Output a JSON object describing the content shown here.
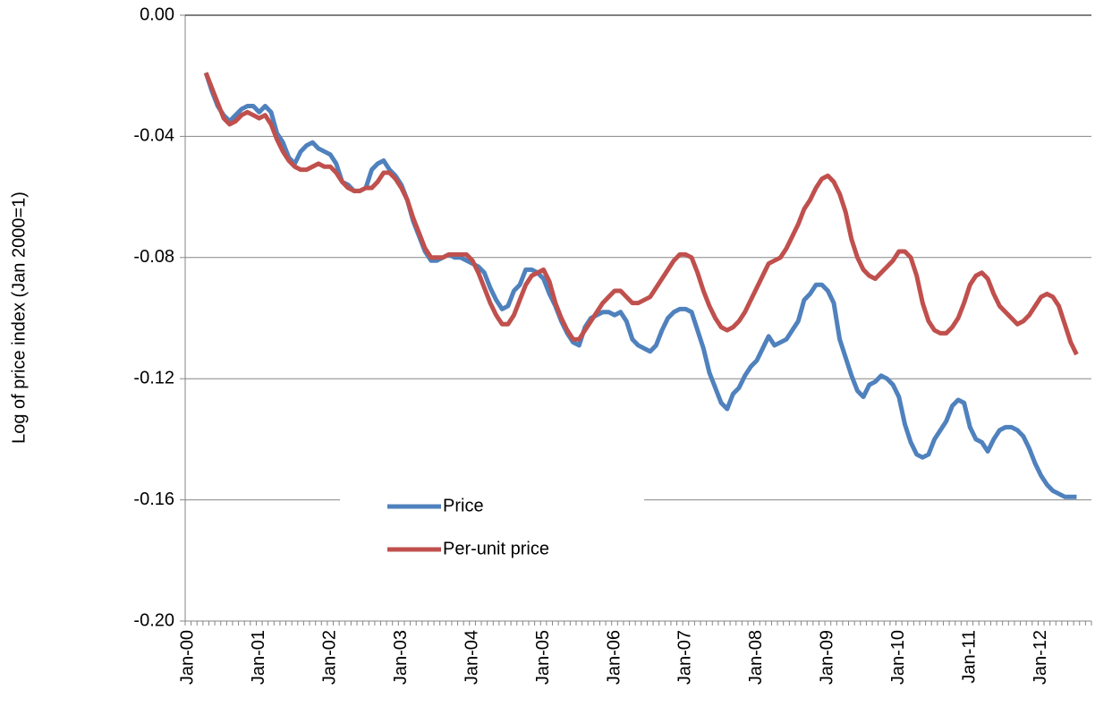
{
  "chart_data": {
    "type": "line",
    "y_label": "Log of price index (Jan 2000=1)",
    "categories": [
      "Jan-00",
      null,
      null,
      null,
      null,
      null,
      null,
      null,
      null,
      null,
      null,
      null,
      "Jan-01",
      null,
      null,
      null,
      null,
      null,
      null,
      null,
      null,
      null,
      null,
      null,
      "Jan-02",
      null,
      null,
      null,
      null,
      null,
      null,
      null,
      null,
      null,
      null,
      null,
      "Jan-03",
      null,
      null,
      null,
      null,
      null,
      null,
      null,
      null,
      null,
      null,
      null,
      "Jan-04",
      null,
      null,
      null,
      null,
      null,
      null,
      null,
      null,
      null,
      null,
      null,
      "Jan-05",
      null,
      null,
      null,
      null,
      null,
      null,
      null,
      null,
      null,
      null,
      null,
      "Jan-06",
      null,
      null,
      null,
      null,
      null,
      null,
      null,
      null,
      null,
      null,
      null,
      "Jan-07",
      null,
      null,
      null,
      null,
      null,
      null,
      null,
      null,
      null,
      null,
      null,
      "Jan-08",
      null,
      null,
      null,
      null,
      null,
      null,
      null,
      null,
      null,
      null,
      null,
      "Jan-09",
      null,
      null,
      null,
      null,
      null,
      null,
      null,
      null,
      null,
      null,
      null,
      "Jan-10",
      null,
      null,
      null,
      null,
      null,
      null,
      null,
      null,
      null,
      null,
      null,
      "Jan-11",
      null,
      null,
      null,
      null,
      null,
      null,
      null,
      null,
      null,
      null,
      null,
      "Jan-12",
      null,
      null,
      null,
      null,
      null,
      null,
      null,
      null
    ],
    "series": [
      {
        "name": "Price",
        "color": "#4f81bd",
        "values": [
          null,
          null,
          null,
          -0.019,
          -0.025,
          -0.03,
          -0.033,
          -0.035,
          -0.033,
          -0.031,
          -0.03,
          -0.03,
          -0.032,
          -0.03,
          -0.032,
          -0.039,
          -0.042,
          -0.047,
          -0.049,
          -0.045,
          -0.043,
          -0.042,
          -0.044,
          -0.045,
          -0.046,
          -0.049,
          -0.055,
          -0.056,
          -0.058,
          -0.058,
          -0.057,
          -0.051,
          -0.049,
          -0.048,
          -0.051,
          -0.053,
          -0.056,
          -0.061,
          -0.068,
          -0.073,
          -0.078,
          -0.081,
          -0.081,
          -0.08,
          -0.079,
          -0.08,
          -0.08,
          -0.081,
          -0.082,
          -0.083,
          -0.085,
          -0.09,
          -0.094,
          -0.097,
          -0.096,
          -0.091,
          -0.089,
          -0.084,
          -0.084,
          -0.085,
          -0.087,
          -0.092,
          -0.096,
          -0.101,
          -0.105,
          -0.108,
          -0.109,
          -0.103,
          -0.1,
          -0.099,
          -0.098,
          -0.098,
          -0.099,
          -0.098,
          -0.101,
          -0.107,
          -0.109,
          -0.11,
          -0.111,
          -0.109,
          -0.104,
          -0.1,
          -0.098,
          -0.097,
          -0.097,
          -0.098,
          -0.104,
          -0.11,
          -0.118,
          -0.123,
          -0.128,
          -0.13,
          -0.125,
          -0.123,
          -0.119,
          -0.116,
          -0.114,
          -0.11,
          -0.106,
          -0.109,
          -0.108,
          -0.107,
          -0.104,
          -0.101,
          -0.094,
          -0.092,
          -0.089,
          -0.089,
          -0.091,
          -0.095,
          -0.107,
          -0.113,
          -0.119,
          -0.124,
          -0.126,
          -0.122,
          -0.121,
          -0.119,
          -0.12,
          -0.122,
          -0.126,
          -0.135,
          -0.141,
          -0.145,
          -0.146,
          -0.145,
          -0.14,
          -0.137,
          -0.134,
          -0.129,
          -0.127,
          -0.128,
          -0.136,
          -0.14,
          -0.141,
          -0.144,
          -0.14,
          -0.137,
          -0.136,
          -0.136,
          -0.137,
          -0.139,
          -0.143,
          -0.148,
          -0.152,
          -0.155,
          -0.157,
          -0.158,
          -0.159,
          -0.159,
          -0.159,
          null,
          null
        ]
      },
      {
        "name": "Per-unit price",
        "color": "#c0504d",
        "values": [
          null,
          null,
          null,
          -0.019,
          -0.024,
          -0.029,
          -0.034,
          -0.036,
          -0.035,
          -0.033,
          -0.032,
          -0.033,
          -0.034,
          -0.033,
          -0.036,
          -0.041,
          -0.045,
          -0.048,
          -0.05,
          -0.051,
          -0.051,
          -0.05,
          -0.049,
          -0.05,
          -0.05,
          -0.052,
          -0.055,
          -0.057,
          -0.058,
          -0.058,
          -0.057,
          -0.057,
          -0.055,
          -0.052,
          -0.052,
          -0.054,
          -0.057,
          -0.061,
          -0.067,
          -0.072,
          -0.077,
          -0.08,
          -0.08,
          -0.08,
          -0.079,
          -0.079,
          -0.079,
          -0.079,
          -0.081,
          -0.085,
          -0.09,
          -0.095,
          -0.099,
          -0.102,
          -0.102,
          -0.099,
          -0.094,
          -0.089,
          -0.086,
          -0.085,
          -0.084,
          -0.088,
          -0.095,
          -0.1,
          -0.104,
          -0.107,
          -0.107,
          -0.104,
          -0.101,
          -0.098,
          -0.095,
          -0.093,
          -0.091,
          -0.091,
          -0.093,
          -0.095,
          -0.095,
          -0.094,
          -0.093,
          -0.09,
          -0.087,
          -0.084,
          -0.081,
          -0.079,
          -0.079,
          -0.08,
          -0.085,
          -0.091,
          -0.096,
          -0.1,
          -0.103,
          -0.104,
          -0.103,
          -0.101,
          -0.098,
          -0.094,
          -0.09,
          -0.086,
          -0.082,
          -0.081,
          -0.08,
          -0.077,
          -0.073,
          -0.069,
          -0.064,
          -0.061,
          -0.057,
          -0.054,
          -0.053,
          -0.055,
          -0.059,
          -0.065,
          -0.074,
          -0.08,
          -0.084,
          -0.086,
          -0.087,
          -0.085,
          -0.083,
          -0.081,
          -0.078,
          -0.078,
          -0.08,
          -0.086,
          -0.095,
          -0.101,
          -0.104,
          -0.105,
          -0.105,
          -0.103,
          -0.1,
          -0.095,
          -0.089,
          -0.086,
          -0.085,
          -0.087,
          -0.092,
          -0.096,
          -0.098,
          -0.1,
          -0.102,
          -0.101,
          -0.099,
          -0.096,
          -0.093,
          -0.092,
          -0.093,
          -0.096,
          -0.102,
          -0.108,
          -0.112,
          null,
          null
        ]
      }
    ],
    "ylim": [
      -0.2,
      0
    ],
    "yticks": [
      {
        "value": -0.2,
        "label": "-0.20"
      },
      {
        "value": -0.16,
        "label": "-0.16"
      },
      {
        "value": -0.12,
        "label": "-0.12"
      },
      {
        "value": -0.08,
        "label": "-0.08"
      },
      {
        "value": -0.04,
        "label": "-0.04"
      },
      {
        "value": 0,
        "label": "0.00"
      }
    ],
    "grid": true,
    "legend": "lower center"
  }
}
